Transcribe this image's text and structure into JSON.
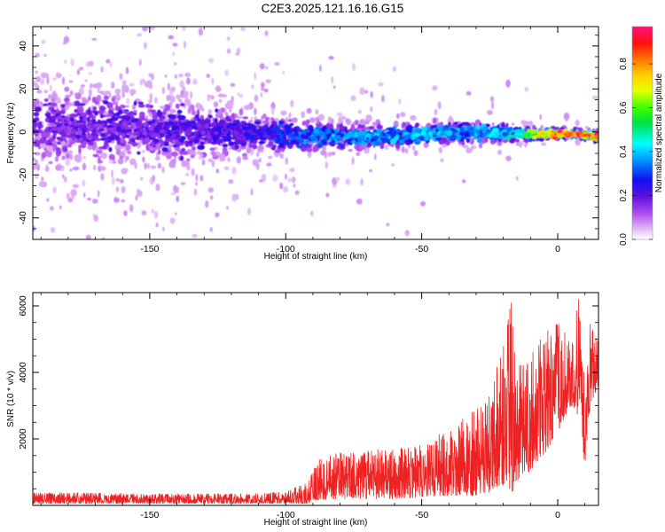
{
  "figure": {
    "title": "C2E3.2025.121.16.16.G15"
  },
  "chart_data": [
    {
      "type": "heatmap",
      "xlabel": "Height of straight line (km)",
      "ylabel": "Frequency (Hz)",
      "xlim": [
        -193,
        15
      ],
      "ylim": [
        -50,
        49
      ],
      "xticks": [
        -150,
        -100,
        -50,
        0
      ],
      "yticks": [
        -40,
        -20,
        0,
        20,
        40
      ],
      "grid": false,
      "colorbar": {
        "label": "Normalized spectral amplitude",
        "range": [
          0,
          0.97
        ],
        "ticks": [
          0.0,
          0.2,
          0.4,
          0.6,
          0.8
        ],
        "colormap": "rainbow (white-violet-blue-cyan-green-yellow-orange-red-magenta)"
      },
      "ridge": {
        "description": "spectral energy concentrated near 0 Hz; broad scatter at low heights, narrowing with height",
        "points": [
          {
            "x": -190,
            "center_hz": 2,
            "spread_hz": 14,
            "amplitude": 0.18
          },
          {
            "x": -170,
            "center_hz": 2,
            "spread_hz": 14,
            "amplitude": 0.2
          },
          {
            "x": -150,
            "center_hz": 1,
            "spread_hz": 12,
            "amplitude": 0.2
          },
          {
            "x": -130,
            "center_hz": 0,
            "spread_hz": 10,
            "amplitude": 0.22
          },
          {
            "x": -110,
            "center_hz": -1,
            "spread_hz": 7,
            "amplitude": 0.25
          },
          {
            "x": -90,
            "center_hz": -2,
            "spread_hz": 5,
            "amplitude": 0.35
          },
          {
            "x": -70,
            "center_hz": -2,
            "spread_hz": 4,
            "amplitude": 0.38
          },
          {
            "x": -50,
            "center_hz": -1,
            "spread_hz": 4,
            "amplitude": 0.38
          },
          {
            "x": -30,
            "center_hz": 0,
            "spread_hz": 4,
            "amplitude": 0.36
          },
          {
            "x": -15,
            "center_hz": -1,
            "spread_hz": 2.5,
            "amplitude": 0.45
          },
          {
            "x": -5,
            "center_hz": -1,
            "spread_hz": 1.8,
            "amplitude": 0.75
          },
          {
            "x": 5,
            "center_hz": -1,
            "spread_hz": 1.5,
            "amplitude": 0.9
          },
          {
            "x": 13,
            "center_hz": -2,
            "spread_hz": 1.5,
            "amplitude": 0.85
          }
        ]
      }
    },
    {
      "type": "line",
      "xlabel": "Height of straight line (km)",
      "ylabel": "SNR (10 * v/v)",
      "xlim": [
        -193,
        15
      ],
      "ylim": [
        0,
        6400
      ],
      "xticks": [
        -150,
        -100,
        -50,
        0
      ],
      "yticks": [
        2000,
        4000,
        6000
      ],
      "grid": false,
      "line_color": "#ee2222",
      "envelope": {
        "description": "noisy SNR; ~200 baseline until about -90 km, then growing scatter, large spikes near -18 km and 0-15 km",
        "x": [
          -193,
          -170,
          -150,
          -130,
          -110,
          -100,
          -92,
          -88,
          -80,
          -70,
          -60,
          -50,
          -40,
          -30,
          -25,
          -20,
          -17,
          -15,
          -10,
          -5,
          0,
          5,
          8,
          10,
          12,
          15
        ],
        "y_min": [
          60,
          60,
          60,
          60,
          60,
          60,
          60,
          150,
          200,
          200,
          200,
          250,
          300,
          300,
          400,
          600,
          300,
          700,
          1000,
          1500,
          2200,
          3000,
          2500,
          1200,
          3000,
          3500
        ],
        "y_max": [
          380,
          380,
          350,
          350,
          350,
          420,
          700,
          1400,
          1600,
          1700,
          1700,
          1900,
          2300,
          2900,
          3500,
          5000,
          6200,
          4200,
          4500,
          5200,
          5500,
          5000,
          6400,
          3500,
          5500,
          5000
        ]
      }
    }
  ]
}
